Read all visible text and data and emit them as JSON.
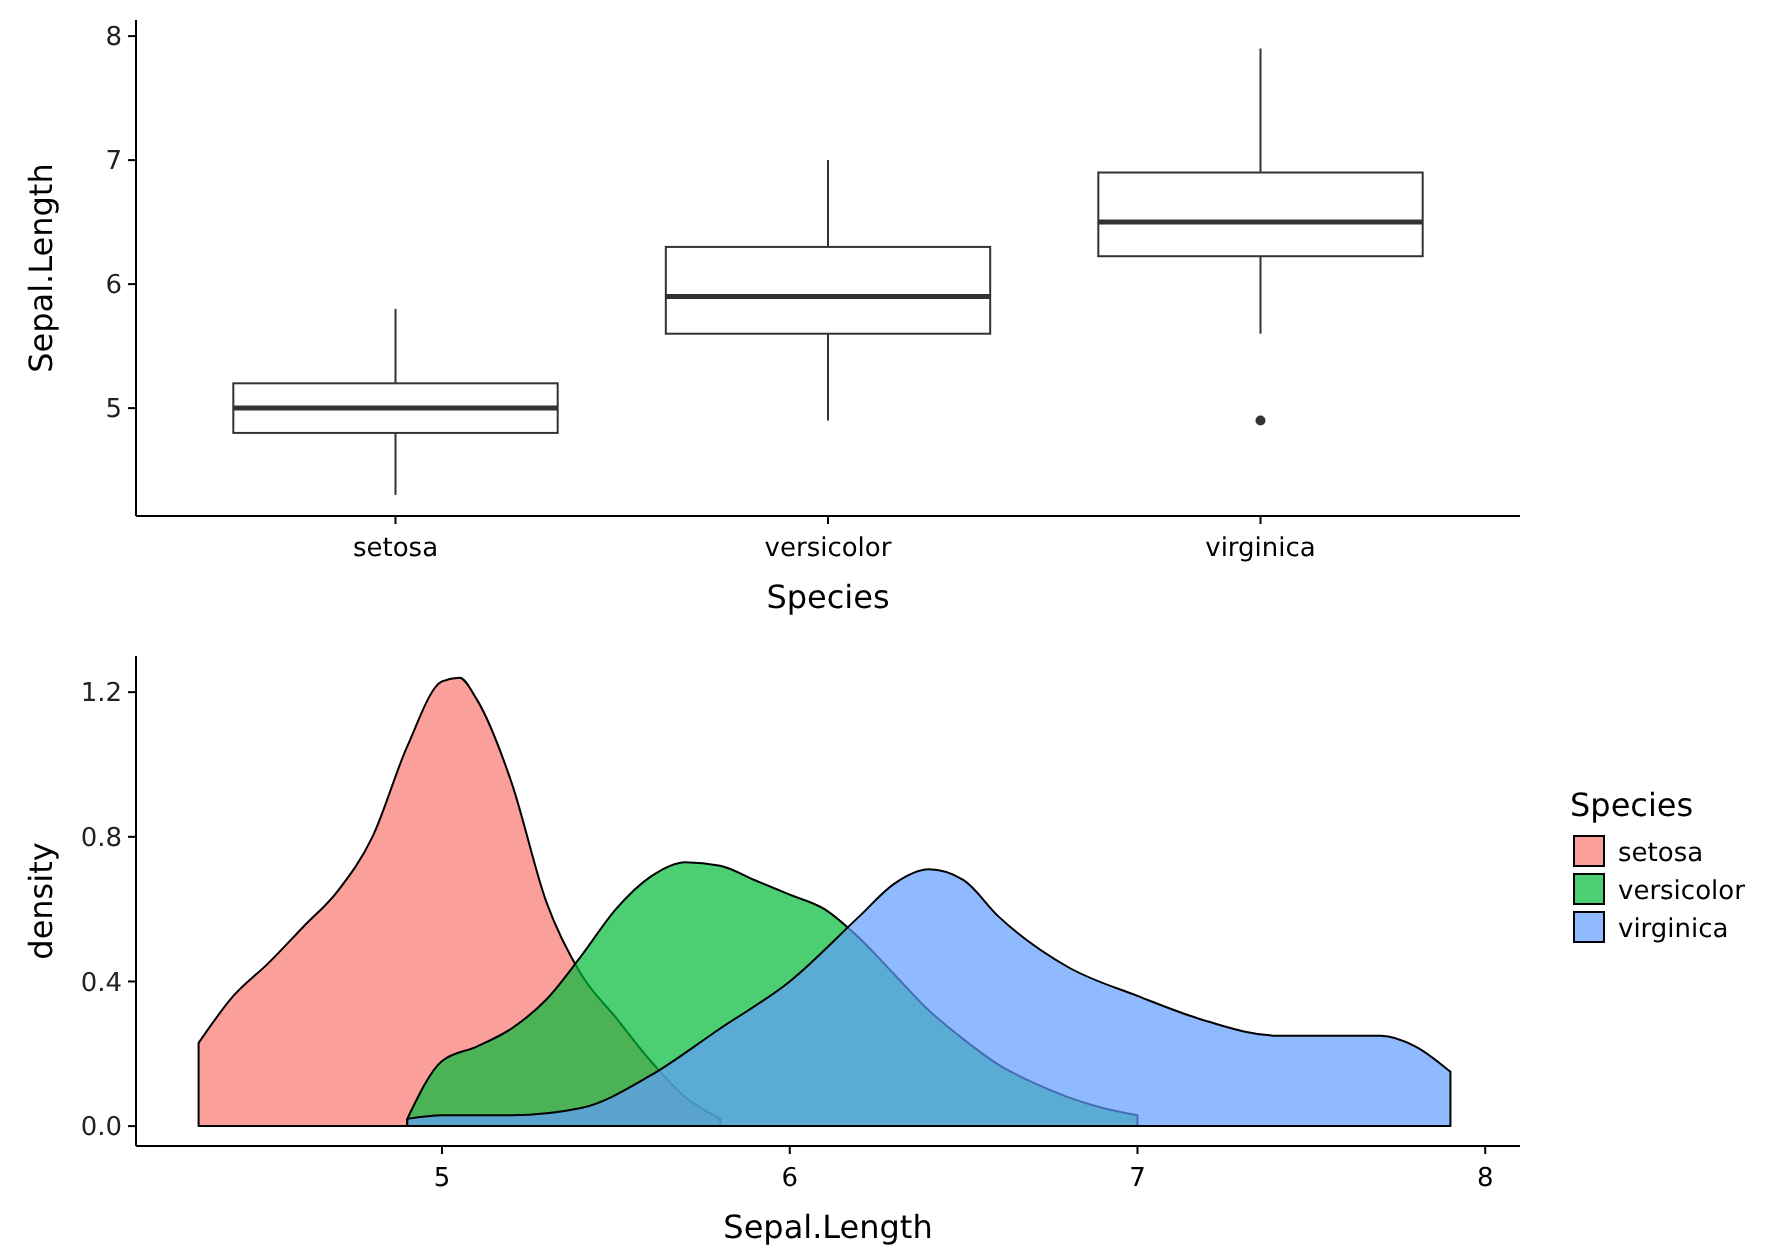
{
  "chart_data": [
    {
      "type": "box",
      "xlabel": "Species",
      "ylabel": "Sepal.Length",
      "categories": [
        "setosa",
        "versicolor",
        "virginica"
      ],
      "ylim": [
        4.13,
        8.13
      ],
      "yticks": [
        5,
        6,
        7,
        8
      ],
      "boxes": [
        {
          "low": 4.3,
          "q1": 4.8,
          "median": 5.0,
          "q3": 5.2,
          "high": 5.8
        },
        {
          "low": 4.9,
          "q1": 5.6,
          "median": 5.9,
          "q3": 6.3,
          "high": 7.0
        },
        {
          "low": 5.6,
          "q1": 6.225,
          "median": 6.5,
          "q3": 6.9,
          "high": 7.9,
          "outliers": [
            4.9
          ]
        }
      ]
    },
    {
      "type": "area",
      "xlabel": "Sepal.Length",
      "ylabel": "density",
      "legend_title": "Species",
      "legend": "right",
      "xlim": [
        4.12,
        8.1
      ],
      "xticks": [
        5,
        6,
        7,
        8
      ],
      "ylim": [
        -0.055,
        1.3
      ],
      "yticks": [
        {
          "value": 0,
          "label": "0.0"
        },
        {
          "value": 0.4,
          "label": "0.4"
        },
        {
          "value": 0.8,
          "label": "0.8"
        },
        {
          "value": 1.2,
          "label": "1.2"
        }
      ],
      "series": [
        {
          "name": "setosa",
          "color": "#f8766d",
          "x": [
            4.3,
            4.4,
            4.5,
            4.6,
            4.7,
            4.8,
            4.9,
            5.0,
            5.05,
            5.1,
            5.2,
            5.3,
            5.4,
            5.5,
            5.6,
            5.7,
            5.8
          ],
          "values": [
            0.23,
            0.36,
            0.45,
            0.55,
            0.65,
            0.8,
            1.05,
            1.23,
            1.24,
            1.18,
            0.95,
            0.62,
            0.42,
            0.3,
            0.18,
            0.08,
            0.02
          ]
        },
        {
          "name": "versicolor",
          "color": "#00ba38",
          "x": [
            4.9,
            5.0,
            5.1,
            5.2,
            5.3,
            5.4,
            5.5,
            5.6,
            5.7,
            5.8,
            5.9,
            6.0,
            6.1,
            6.2,
            6.3,
            6.4,
            6.5,
            6.6,
            6.7,
            6.8,
            6.9,
            7.0
          ],
          "values": [
            0.02,
            0.18,
            0.22,
            0.27,
            0.35,
            0.47,
            0.6,
            0.69,
            0.73,
            0.72,
            0.68,
            0.64,
            0.6,
            0.52,
            0.42,
            0.32,
            0.24,
            0.17,
            0.12,
            0.08,
            0.05,
            0.03
          ]
        },
        {
          "name": "virginica",
          "color": "#619cff",
          "x": [
            4.9,
            5.0,
            5.2,
            5.4,
            5.6,
            5.8,
            6.0,
            6.2,
            6.3,
            6.4,
            6.5,
            6.6,
            6.8,
            7.0,
            7.2,
            7.4,
            7.6,
            7.7,
            7.8,
            7.9
          ],
          "values": [
            0.02,
            0.03,
            0.03,
            0.05,
            0.14,
            0.27,
            0.4,
            0.58,
            0.67,
            0.71,
            0.68,
            0.58,
            0.44,
            0.36,
            0.29,
            0.25,
            0.25,
            0.25,
            0.22,
            0.15
          ]
        }
      ]
    }
  ]
}
